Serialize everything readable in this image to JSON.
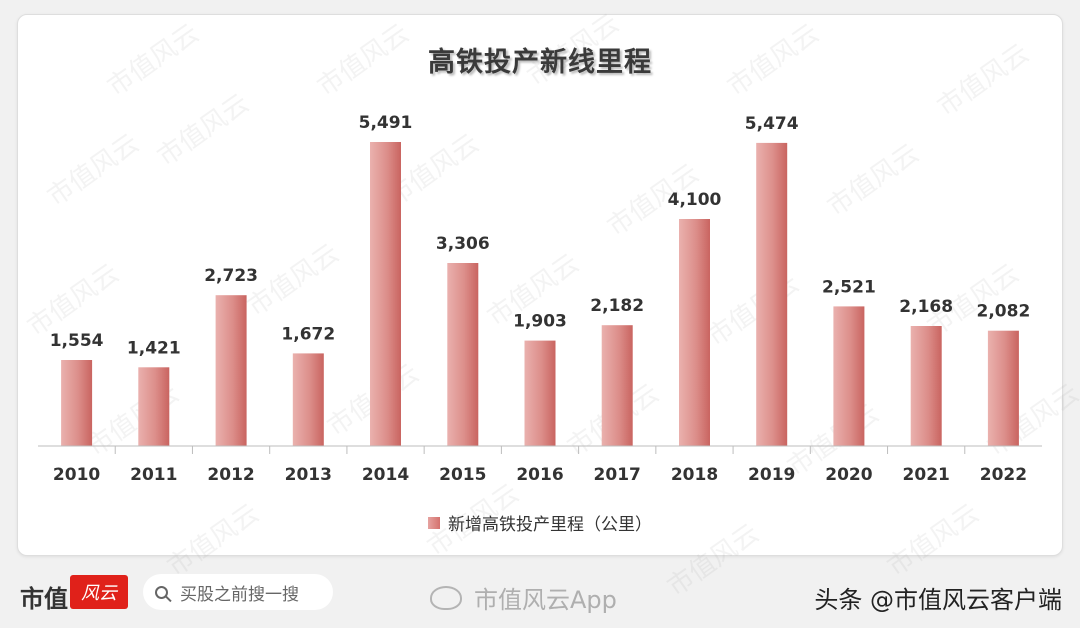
{
  "chart_data": {
    "type": "bar",
    "title": "高铁投产新线里程",
    "categories": [
      "2010",
      "2011",
      "2012",
      "2013",
      "2014",
      "2015",
      "2016",
      "2017",
      "2018",
      "2019",
      "2020",
      "2021",
      "2022"
    ],
    "series": [
      {
        "name": "新增高铁投产里程（公里）",
        "values": [
          1554,
          1421,
          2723,
          1672,
          5491,
          3306,
          1903,
          2182,
          4100,
          5474,
          2521,
          2168,
          2082
        ]
      }
    ],
    "value_labels": [
      "1,554",
      "1,421",
      "2,723",
      "1,672",
      "5,491",
      "3,306",
      "1,903",
      "2,182",
      "4,100",
      "5,474",
      "2,521",
      "2,168",
      "2,082"
    ],
    "ylim": [
      0,
      5491
    ],
    "grid": false,
    "legend_position": "bottom",
    "bar_color": "#d9827e"
  },
  "watermark": {
    "text": "市值风云"
  },
  "footer": {
    "brand": "市值",
    "brand_logo": "风云",
    "search_placeholder": "买股之前搜一搜",
    "weibo": "市值风云App",
    "toutiao": "头条 @市值风云客户端"
  }
}
